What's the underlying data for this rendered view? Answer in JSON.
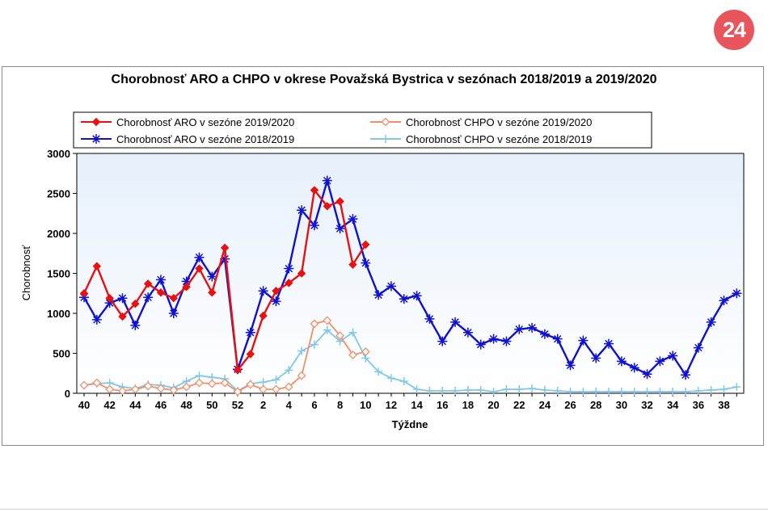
{
  "badge": {
    "label": "24"
  },
  "chart_data": {
    "type": "line",
    "title": "Chorobnosť ARO a CHPO v okrese Považská Bystrica v sezónach 2018/2019 a 2019/2020",
    "xlabel": "Týždne",
    "ylabel": "Chorobnosť",
    "ylim": [
      0,
      3000
    ],
    "yticks": [
      0,
      500,
      1000,
      1500,
      2000,
      2500,
      3000
    ],
    "weeks": [
      "40",
      "41",
      "42",
      "43",
      "44",
      "45",
      "46",
      "47",
      "48",
      "49",
      "50",
      "51",
      "52",
      "1",
      "2",
      "3",
      "4",
      "5",
      "6",
      "7",
      "8",
      "9",
      "10",
      "11",
      "12",
      "13",
      "14",
      "15",
      "16",
      "17",
      "18",
      "19",
      "20",
      "21",
      "22",
      "23",
      "24",
      "25",
      "26",
      "27",
      "28",
      "29",
      "30",
      "31",
      "32",
      "33",
      "34",
      "35",
      "36",
      "37",
      "38",
      "39"
    ],
    "xtick_labels": [
      "40",
      "42",
      "44",
      "46",
      "48",
      "50",
      "52",
      "2",
      "4",
      "6",
      "8",
      "10",
      "12",
      "14",
      "16",
      "18",
      "20",
      "22",
      "24",
      "26",
      "28",
      "30",
      "32",
      "34",
      "36",
      "38"
    ],
    "legend_position": "top",
    "grid": false,
    "series": [
      {
        "name": "Chorobnosť ARO v sezóne 2019/2020",
        "color": "#e81010",
        "marker": "diamond",
        "values": [
          1250,
          1590,
          1190,
          960,
          1120,
          1370,
          1260,
          1190,
          1330,
          1560,
          1260,
          1820,
          290,
          490,
          970,
          1280,
          1380,
          1500,
          2540,
          2340,
          2400,
          1610,
          1860
        ]
      },
      {
        "name": "Chorobnosť CHPO v sezóne 2019/2020",
        "color": "#f0906a",
        "marker": "open-diamond",
        "values": [
          100,
          130,
          50,
          30,
          50,
          90,
          60,
          40,
          80,
          130,
          120,
          130,
          20,
          110,
          50,
          50,
          80,
          220,
          870,
          910,
          720,
          480,
          520
        ]
      },
      {
        "name": "Chorobnosť ARO v sezóne 2018/2019",
        "color": "#1010d0",
        "marker": "asterisk",
        "values": [
          1200,
          920,
          1130,
          1190,
          850,
          1200,
          1420,
          1000,
          1400,
          1700,
          1460,
          1680,
          300,
          760,
          1280,
          1150,
          1560,
          2290,
          2100,
          2660,
          2060,
          2180,
          1630,
          1230,
          1340,
          1180,
          1220,
          930,
          650,
          890,
          760,
          610,
          680,
          650,
          800,
          820,
          740,
          680,
          350,
          660,
          440,
          620,
          400,
          320,
          240,
          400,
          470,
          230,
          570,
          890,
          1160,
          1250
        ]
      },
      {
        "name": "Chorobnosť CHPO v sezóne 2018/2019",
        "color": "#80c8e8",
        "marker": "plus",
        "values": [
          100,
          120,
          130,
          80,
          60,
          110,
          100,
          70,
          150,
          220,
          200,
          180,
          30,
          120,
          140,
          170,
          290,
          530,
          610,
          790,
          650,
          760,
          440,
          270,
          190,
          150,
          50,
          30,
          30,
          30,
          40,
          40,
          20,
          50,
          50,
          60,
          40,
          30,
          20,
          20,
          20,
          20,
          20,
          20,
          20,
          20,
          20,
          20,
          30,
          40,
          50,
          80
        ]
      }
    ]
  }
}
